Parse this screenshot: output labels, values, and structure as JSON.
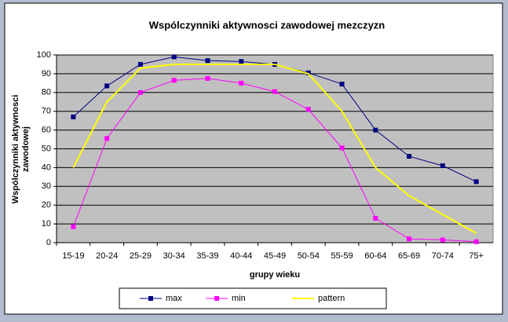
{
  "chart_data": {
    "type": "line",
    "title": "Wspólczynniki aktywnosci zawodowej mezczyzn",
    "x_label": "grupy wieku",
    "y_label": [
      "Wspólczynniki aktywnosci",
      "zawodowej"
    ],
    "categories": [
      "15-19",
      "20-24",
      "25-29",
      "30-34",
      "35-39",
      "40-44",
      "45-49",
      "50-54",
      "55-59",
      "60-64",
      "65-69",
      "70-74",
      "75+"
    ],
    "series": [
      {
        "name": "max",
        "color": "#000080",
        "marker": true,
        "values": [
          67,
          83.5,
          95,
          99,
          97,
          96.5,
          95,
          90.5,
          84.5,
          60,
          46,
          41,
          32.5
        ]
      },
      {
        "name": "min",
        "color": "#ff00ff",
        "marker": true,
        "values": [
          8.5,
          55.5,
          80,
          86.5,
          87.5,
          85,
          80.5,
          71,
          50.5,
          13,
          2,
          1.5,
          0.5
        ]
      },
      {
        "name": "pattern",
        "color": "#ffff00",
        "marker": false,
        "values": [
          40,
          75,
          93,
          95,
          95,
          95,
          95,
          90,
          70,
          40,
          25,
          15,
          5
        ]
      }
    ],
    "ylim": [
      0,
      100
    ],
    "yticks": [
      0,
      10,
      20,
      30,
      40,
      50,
      60,
      70,
      80,
      90,
      100
    ],
    "grid": true,
    "legend": "bottom"
  }
}
